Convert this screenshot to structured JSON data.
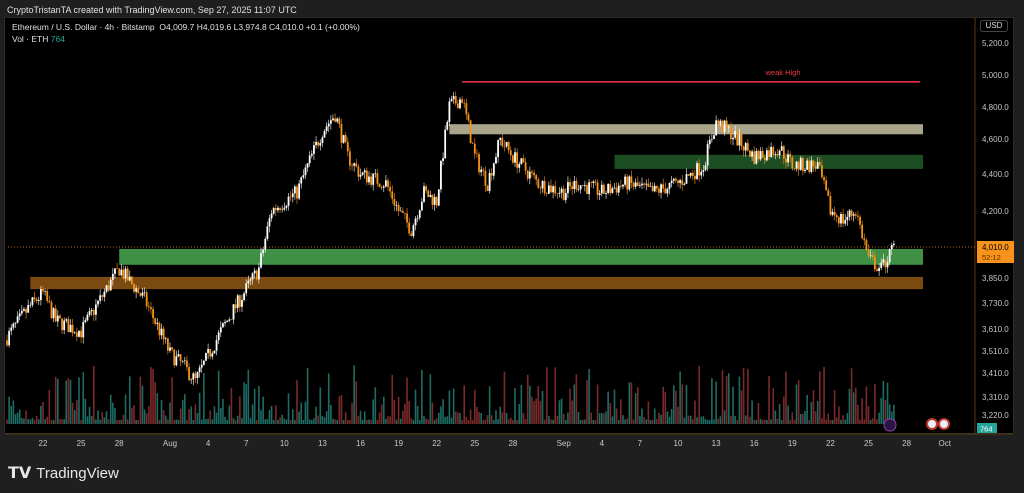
{
  "header": {
    "credit": "CryptoTristanTA created with TradingView.com, Sep 27, 2025 11:07 UTC",
    "symbol": "Ethereum / U.S. Dollar · 4h · Bitstamp",
    "ohlc": "O4,009.7 H4,019.6 L3,974.8 C4,010.0 +0.1 (+0.00%)",
    "vol_label": "Vol · ETH",
    "vol_value": "764"
  },
  "axis": {
    "currency": "USD",
    "last_price": "4,010.0",
    "countdown": "52:12",
    "vol_badge": "764"
  },
  "brand": "TradingView",
  "colors": {
    "up": "#ffffff",
    "down": "#f7931a",
    "vol_up": "#1e6b63",
    "vol_down": "#7a2a2a",
    "price_tag": "#f7931a",
    "weak_high": "#f23645"
  },
  "chart_data": {
    "type": "candlestick",
    "scale": "log",
    "grid": false,
    "ylim": [
      3200,
      5250
    ],
    "y_ticks": [
      "5,200.0",
      "5,000.0",
      "4,800.0",
      "4,600.0",
      "4,400.0",
      "4,200.0",
      "3,850.0",
      "3,730.0",
      "3,610.0",
      "3,510.0",
      "3,410.0",
      "3,310.0",
      "3,220.0"
    ],
    "y_tick_values": [
      5200,
      5000,
      4800,
      4600,
      4400,
      4200,
      3850,
      3730,
      3610,
      3510,
      3410,
      3310,
      3220
    ],
    "x_ticks": [
      {
        "label": "22",
        "date": "2025-07-22"
      },
      {
        "label": "25",
        "date": "2025-07-25"
      },
      {
        "label": "28",
        "date": "2025-07-28"
      },
      {
        "label": "Aug",
        "date": "2025-08-01"
      },
      {
        "label": "4",
        "date": "2025-08-04"
      },
      {
        "label": "7",
        "date": "2025-08-07"
      },
      {
        "label": "10",
        "date": "2025-08-10"
      },
      {
        "label": "13",
        "date": "2025-08-13"
      },
      {
        "label": "16",
        "date": "2025-08-16"
      },
      {
        "label": "19",
        "date": "2025-08-19"
      },
      {
        "label": "22",
        "date": "2025-08-22"
      },
      {
        "label": "25",
        "date": "2025-08-25"
      },
      {
        "label": "28",
        "date": "2025-08-28"
      },
      {
        "label": "Sep",
        "date": "2025-09-01"
      },
      {
        "label": "4",
        "date": "2025-09-04"
      },
      {
        "label": "7",
        "date": "2025-09-07"
      },
      {
        "label": "10",
        "date": "2025-09-10"
      },
      {
        "label": "13",
        "date": "2025-09-13"
      },
      {
        "label": "16",
        "date": "2025-09-16"
      },
      {
        "label": "19",
        "date": "2025-09-19"
      },
      {
        "label": "22",
        "date": "2025-09-22"
      },
      {
        "label": "25",
        "date": "2025-09-25"
      },
      {
        "label": "28",
        "date": "2025-09-28"
      },
      {
        "label": "Oct",
        "date": "2025-10-01"
      }
    ],
    "closes": [
      [
        "2025-07-19",
        3560
      ],
      [
        "2025-07-21",
        3720
      ],
      [
        "2025-07-22",
        3780
      ],
      [
        "2025-07-23",
        3650
      ],
      [
        "2025-07-25",
        3600
      ],
      [
        "2025-07-27",
        3800
      ],
      [
        "2025-07-28",
        3900
      ],
      [
        "2025-07-30",
        3750
      ],
      [
        "2025-08-01",
        3500
      ],
      [
        "2025-08-02",
        3450
      ],
      [
        "2025-08-03",
        3380
      ],
      [
        "2025-08-05",
        3600
      ],
      [
        "2025-08-06",
        3700
      ],
      [
        "2025-08-08",
        3900
      ],
      [
        "2025-08-09",
        4200
      ],
      [
        "2025-08-11",
        4300
      ],
      [
        "2025-08-13",
        4650
      ],
      [
        "2025-08-14",
        4750
      ],
      [
        "2025-08-15",
        4500
      ],
      [
        "2025-08-16",
        4400
      ],
      [
        "2025-08-18",
        4350
      ],
      [
        "2025-08-19",
        4200
      ],
      [
        "2025-08-20",
        4100
      ],
      [
        "2025-08-21",
        4300
      ],
      [
        "2025-08-22",
        4250
      ],
      [
        "2025-08-23",
        4800
      ],
      [
        "2025-08-24",
        4850
      ],
      [
        "2025-08-25",
        4500
      ],
      [
        "2025-08-26",
        4350
      ],
      [
        "2025-08-27",
        4600
      ],
      [
        "2025-08-28",
        4500
      ],
      [
        "2025-08-30",
        4350
      ],
      [
        "2025-09-01",
        4300
      ],
      [
        "2025-09-02",
        4350
      ],
      [
        "2025-09-04",
        4300
      ],
      [
        "2025-09-06",
        4350
      ],
      [
        "2025-09-08",
        4300
      ],
      [
        "2025-09-10",
        4350
      ],
      [
        "2025-09-12",
        4450
      ],
      [
        "2025-09-13",
        4700
      ],
      [
        "2025-09-14",
        4650
      ],
      [
        "2025-09-16",
        4500
      ],
      [
        "2025-09-18",
        4550
      ],
      [
        "2025-09-19",
        4450
      ],
      [
        "2025-09-21",
        4450
      ],
      [
        "2025-09-22",
        4200
      ],
      [
        "2025-09-23",
        4150
      ],
      [
        "2025-09-24",
        4200
      ],
      [
        "2025-09-25",
        3950
      ],
      [
        "2025-09-26",
        3900
      ],
      [
        "2025-09-27",
        4010
      ]
    ],
    "annotations": [
      {
        "type": "line",
        "label": "weak High",
        "price": 4950,
        "from": "2025-08-24",
        "to": "2025-09-30",
        "color": "#f23645"
      },
      {
        "type": "zone",
        "price": [
          4630,
          4690
        ],
        "from": "2025-08-23",
        "to": "2025-09-30",
        "color": "#a9a58a"
      },
      {
        "type": "zone",
        "price": [
          4430,
          4510
        ],
        "from": "2025-09-05",
        "to": "2025-09-30",
        "color": "#1d4d22"
      },
      {
        "type": "zone",
        "price": [
          3920,
          4000
        ],
        "from": "2025-07-28",
        "to": "2025-09-30",
        "color": "#3f8f44"
      },
      {
        "type": "zone",
        "price": [
          3800,
          3860
        ],
        "from": "2025-07-21",
        "to": "2025-09-30",
        "color": "#7a4a10"
      }
    ]
  }
}
